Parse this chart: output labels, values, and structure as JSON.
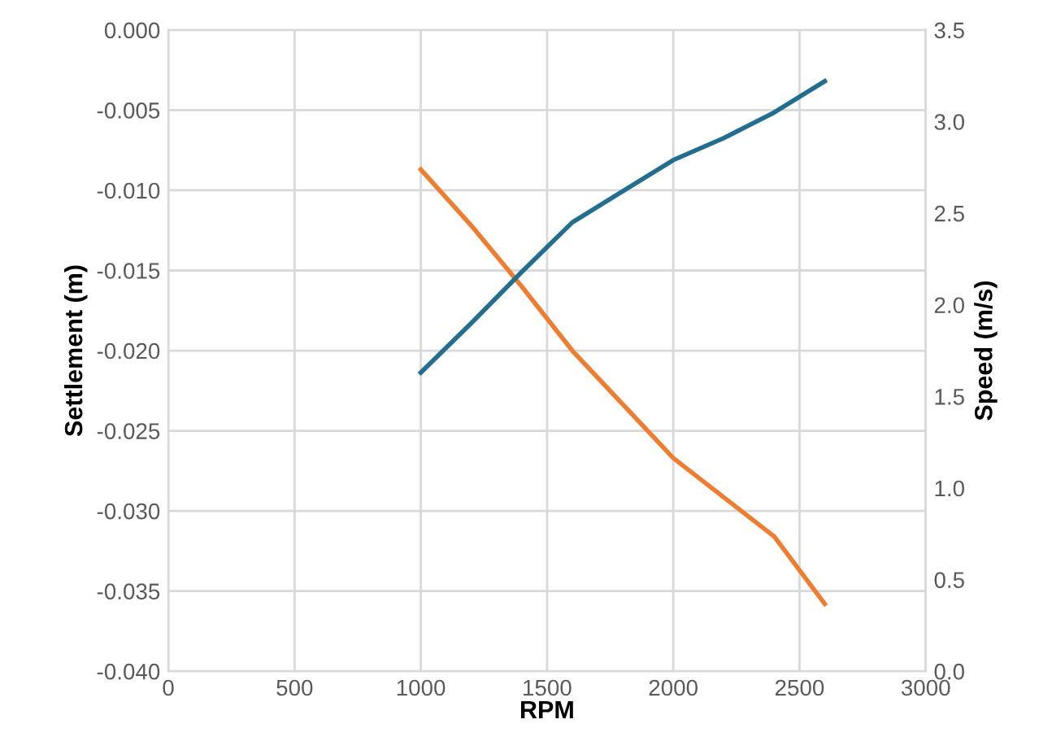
{
  "chart_data": {
    "type": "line",
    "xlabel": "RPM",
    "ylabel": "Settlement (m)",
    "y2label": "Speed (m/s)",
    "xlim": [
      0,
      3000
    ],
    "xticks": [
      0,
      500,
      1000,
      1500,
      2000,
      2500,
      3000
    ],
    "ylim": [
      -0.04,
      0.0
    ],
    "yticks": [
      {
        "value": -0.04,
        "label": "-0.040"
      },
      {
        "value": -0.035,
        "label": "-0.035"
      },
      {
        "value": -0.03,
        "label": "-0.030"
      },
      {
        "value": -0.025,
        "label": "-0.025"
      },
      {
        "value": -0.02,
        "label": "-0.020"
      },
      {
        "value": -0.015,
        "label": "-0.015"
      },
      {
        "value": -0.01,
        "label": "-0.010"
      },
      {
        "value": -0.005,
        "label": "-0.005"
      },
      {
        "value": 0.0,
        "label": "0.000"
      }
    ],
    "y2lim": [
      0.0,
      3.5
    ],
    "y2ticks": [
      {
        "value": 0,
        "label": "0.0"
      },
      {
        "value": 0.5,
        "label": "0.5"
      },
      {
        "value": 1,
        "label": "1.0"
      },
      {
        "value": 1.5,
        "label": "1.5"
      },
      {
        "value": 2,
        "label": "2.0"
      },
      {
        "value": 2.5,
        "label": "2.5"
      },
      {
        "value": 3,
        "label": "3.0"
      },
      {
        "value": 3.5,
        "label": "3.5"
      }
    ],
    "grid": true,
    "marker": "none",
    "line_style": "solid",
    "series": [
      {
        "color": "#ed7d31",
        "x": [
          1000,
          1200,
          1400,
          1600,
          2000,
          2400,
          2600
        ],
        "values": [
          -0.0087,
          -0.0122,
          -0.016,
          -0.02,
          -0.0267,
          -0.0316,
          -0.0358
        ]
      },
      {
        "color": "#236e8e",
        "axis": "y2",
        "x": [
          1000,
          1200,
          1400,
          1600,
          2000,
          2200,
          2400,
          2600
        ],
        "values": [
          1.63,
          1.9,
          2.18,
          2.45,
          2.79,
          2.91,
          3.05,
          3.22
        ]
      }
    ]
  }
}
